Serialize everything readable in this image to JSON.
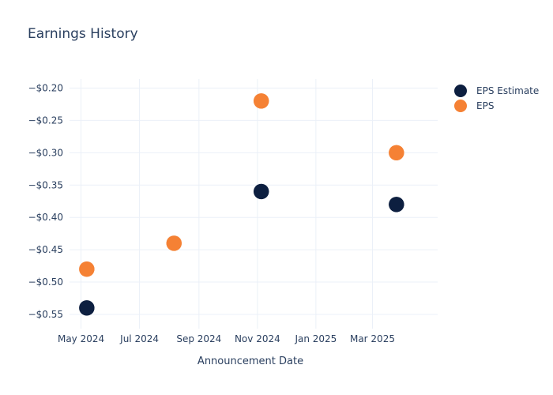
{
  "chart_data": {
    "type": "scatter",
    "title": "Earnings History",
    "xlabel": "Announcement Date",
    "ylabel": "",
    "x_ticks": [
      "May 2024",
      "Jul 2024",
      "Sep 2024",
      "Nov 2024",
      "Jan 2025",
      "Mar 2025"
    ],
    "x_tick_dates": [
      "2024-05-01",
      "2024-07-01",
      "2024-09-01",
      "2024-11-01",
      "2025-01-01",
      "2025-03-01"
    ],
    "xlim": [
      "2024-04-19",
      "2025-05-08"
    ],
    "y_ticks": [
      "−$0.20",
      "−$0.25",
      "−$0.30",
      "−$0.35",
      "−$0.40",
      "−$0.45",
      "−$0.50",
      "−$0.55"
    ],
    "y_tick_values": [
      -0.2,
      -0.25,
      -0.3,
      -0.35,
      -0.4,
      -0.45,
      -0.5,
      -0.55
    ],
    "ylim": [
      -0.572,
      -0.186
    ],
    "grid": true,
    "legend_position": "top-right",
    "series": [
      {
        "name": "EPS Estimate",
        "color": "#0d1f40",
        "points": [
          {
            "x": "2024-05-07",
            "y": -0.54
          },
          {
            "x": "2024-08-06",
            "y": -0.44
          },
          {
            "x": "2024-11-05",
            "y": -0.36
          },
          {
            "x": "2025-03-26",
            "y": -0.38
          }
        ]
      },
      {
        "name": "EPS",
        "color": "#f58134",
        "points": [
          {
            "x": "2024-05-07",
            "y": -0.48
          },
          {
            "x": "2024-08-06",
            "y": -0.44
          },
          {
            "x": "2024-11-05",
            "y": -0.22
          },
          {
            "x": "2025-03-26",
            "y": -0.3
          }
        ]
      }
    ]
  }
}
